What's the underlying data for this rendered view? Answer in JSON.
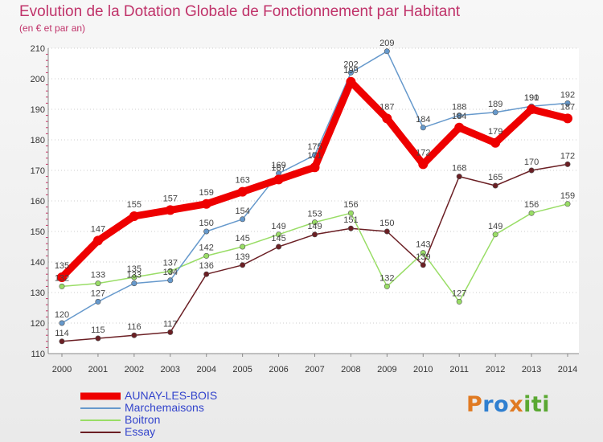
{
  "header": {
    "title": "Evolution de la Dotation Globale de Fonctionnement par Habitant",
    "subtitle": "(en € et par an)"
  },
  "logo": {
    "text": "Proxiti",
    "letters": [
      "P",
      "r",
      "o",
      "x",
      "i",
      "t",
      "i"
    ],
    "colors": [
      "#e07a22",
      "#2f7fd0",
      "#2f7fd0",
      "#e07a22",
      "#5aa832",
      "#5aa832",
      "#5aa832"
    ]
  },
  "chart_data": {
    "type": "line",
    "title": "Evolution de la Dotation Globale de Fonctionnement par Habitant",
    "subtitle": "(en € et par an)",
    "xlabel": "",
    "ylabel": "",
    "x": [
      "2000",
      "2001",
      "2002",
      "2003",
      "2004",
      "2005",
      "2006",
      "2007",
      "2008",
      "2009",
      "2010",
      "2011",
      "2012",
      "2013",
      "2014"
    ],
    "ylim": [
      110,
      210
    ],
    "yticks": [
      110,
      120,
      130,
      140,
      150,
      160,
      170,
      180,
      190,
      200,
      210
    ],
    "grid": "horizontal dotted",
    "legend_position": "bottom-left",
    "series": [
      {
        "name": "Essay",
        "color": "#6b1f24",
        "values": [
          114,
          115,
          116,
          117,
          136,
          139,
          145,
          149,
          151,
          150,
          139,
          168,
          165,
          170,
          172
        ]
      },
      {
        "name": "Boitron",
        "color": "#99dd66",
        "values": [
          132,
          133,
          135,
          137,
          142,
          145,
          149,
          153,
          156,
          132,
          143,
          127,
          149,
          156,
          159
        ]
      },
      {
        "name": "Marchemaisons",
        "color": "#6699cc",
        "values": [
          120,
          127,
          133,
          134,
          150,
          154,
          169,
          175,
          202,
          209,
          184,
          188,
          189,
          191,
          192
        ]
      },
      {
        "name": "AUNAY-LES-BOIS",
        "color": "#ee0000",
        "values": [
          135,
          147,
          155,
          157,
          159,
          163,
          167,
          171,
          199,
          187,
          172,
          184,
          179,
          190,
          187
        ]
      }
    ],
    "legend": [
      "AUNAY-LES-BOIS",
      "Marchemaisons",
      "Boitron",
      "Essay"
    ]
  }
}
